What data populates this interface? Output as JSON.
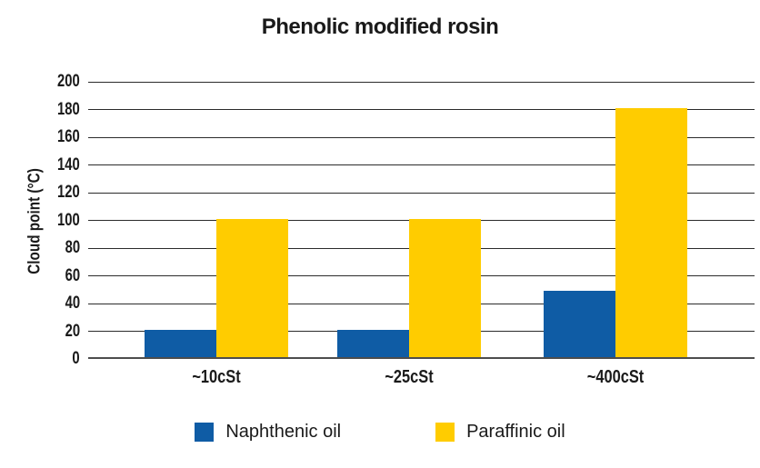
{
  "title": "Phenolic modified rosin",
  "chart_data": {
    "type": "bar",
    "title": "Phenolic modified rosin",
    "categories": [
      "~10cSt",
      "~25cSt",
      "~400cSt"
    ],
    "series": [
      {
        "name": "Naphthenic oil",
        "color": "#0F5CA5",
        "values": [
          20,
          20,
          48
        ]
      },
      {
        "name": "Paraffinic oil",
        "color": "#FFCC00",
        "values": [
          100,
          100,
          180
        ]
      }
    ],
    "xlabel": "",
    "ylabel": "Cloud point (°C)",
    "ylim": [
      0,
      200
    ],
    "ytick_step": 20,
    "yticks": [
      0,
      20,
      40,
      60,
      80,
      100,
      120,
      140,
      160,
      180,
      200
    ],
    "grid": "horizontal",
    "legend_position": "bottom"
  },
  "colors": {
    "naphthenic_blue": "#0F5CA5",
    "paraffinic_yellow": "#FFCC00",
    "gridline": "#2b2b2b",
    "baseline": "#4d4d4d",
    "text": "#1a1a1a",
    "background": "#ffffff"
  }
}
